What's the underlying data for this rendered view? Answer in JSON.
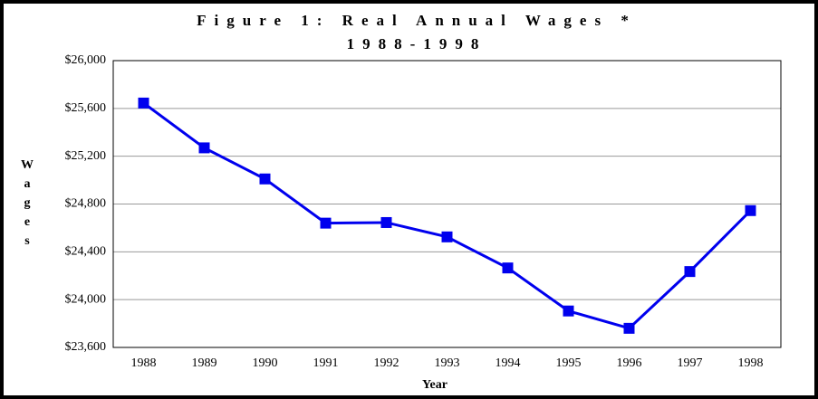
{
  "chart_data": {
    "type": "line",
    "title": "Figure 1: Real Annual Wages *",
    "subtitle": "1988-1998",
    "y_label": "Wages",
    "x_label": "Year",
    "categories": [
      "1988",
      "1989",
      "1990",
      "1991",
      "1992",
      "1993",
      "1994",
      "1995",
      "1996",
      "1997",
      "1998"
    ],
    "series": [
      {
        "name": "Wages",
        "color": "#0000ee",
        "values": [
          25645,
          25270,
          25010,
          24640,
          24645,
          24525,
          24265,
          23905,
          23760,
          24235,
          24745
        ]
      }
    ],
    "ylim": [
      23600,
      26000
    ],
    "yticks": [
      {
        "value": 23600,
        "label": "$23,600"
      },
      {
        "value": 24000,
        "label": "$24,000"
      },
      {
        "value": 24400,
        "label": "$24,400"
      },
      {
        "value": 24800,
        "label": "$24,800"
      },
      {
        "value": 25200,
        "label": "$25,200"
      },
      {
        "value": 25600,
        "label": "$25,600"
      },
      {
        "value": 26000,
        "label": "$26,000"
      }
    ],
    "grid": true
  }
}
